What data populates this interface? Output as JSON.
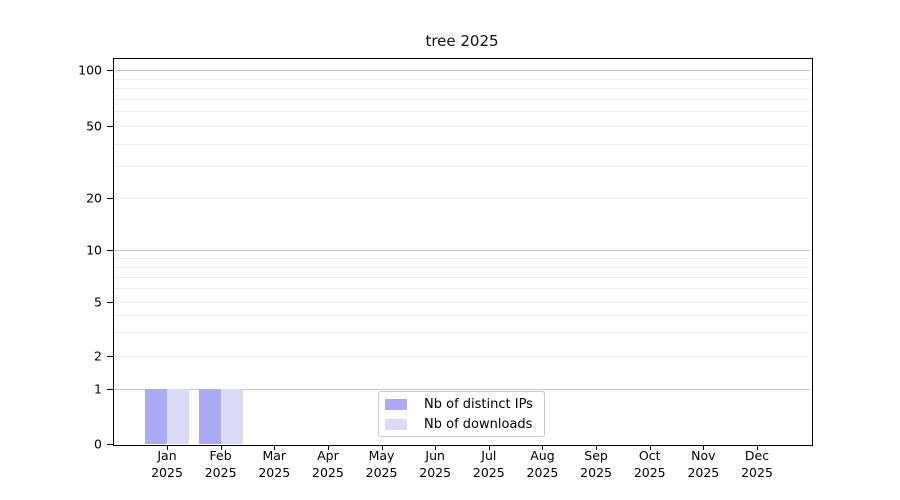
{
  "title": "tree 2025",
  "legend": {
    "items": [
      {
        "label": "Nb of distinct IPs",
        "color": "#aaaaf5"
      },
      {
        "label": "Nb of downloads",
        "color": "#dbdbf8"
      }
    ]
  },
  "chart_data": {
    "type": "bar",
    "title": "tree 2025",
    "categories": [
      "Jan 2025",
      "Feb 2025",
      "Mar 2025",
      "Apr 2025",
      "May 2025",
      "Jun 2025",
      "Jul 2025",
      "Aug 2025",
      "Sep 2025",
      "Oct 2025",
      "Nov 2025",
      "Dec 2025"
    ],
    "series": [
      {
        "name": "Nb of distinct IPs",
        "color": "#aaaaf5",
        "values": [
          1,
          1,
          0,
          0,
          0,
          0,
          0,
          0,
          0,
          0,
          0,
          0
        ]
      },
      {
        "name": "Nb of downloads",
        "color": "#dbdbf8",
        "values": [
          1,
          1,
          0,
          0,
          0,
          0,
          0,
          0,
          0,
          0,
          0,
          0
        ]
      }
    ],
    "xlabel": "",
    "ylabel": "",
    "yscale": "log-like",
    "ylim": [
      0,
      100
    ],
    "y_ticks": [
      100,
      50,
      20,
      10,
      5,
      2,
      1,
      0
    ],
    "y_minor_ticks": [
      3,
      4,
      6,
      7,
      8,
      9,
      30,
      40,
      60,
      70,
      80,
      90
    ],
    "grid": "horizontal",
    "legend_position": "lower center"
  }
}
